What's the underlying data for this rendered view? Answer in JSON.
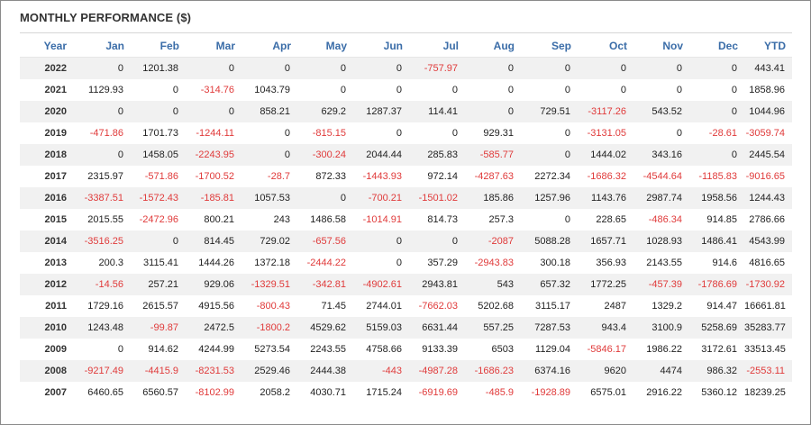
{
  "title": "MONTHLY PERFORMANCE ($)",
  "colors": {
    "header_text": "#3b6da8",
    "negative": "#e03a3a",
    "row_stripe": "#f1f1f1"
  },
  "columns": [
    "Year",
    "Jan",
    "Feb",
    "Mar",
    "Apr",
    "May",
    "Jun",
    "Jul",
    "Aug",
    "Sep",
    "Oct",
    "Nov",
    "Dec",
    "YTD"
  ],
  "rows": [
    [
      "2022",
      "0",
      "1201.38",
      "0",
      "0",
      "0",
      "0",
      "-757.97",
      "0",
      "0",
      "0",
      "0",
      "0",
      "443.41"
    ],
    [
      "2021",
      "1129.93",
      "0",
      "-314.76",
      "1043.79",
      "0",
      "0",
      "0",
      "0",
      "0",
      "0",
      "0",
      "0",
      "1858.96"
    ],
    [
      "2020",
      "0",
      "0",
      "0",
      "858.21",
      "629.2",
      "1287.37",
      "114.41",
      "0",
      "729.51",
      "-3117.26",
      "543.52",
      "0",
      "1044.96"
    ],
    [
      "2019",
      "-471.86",
      "1701.73",
      "-1244.11",
      "0",
      "-815.15",
      "0",
      "0",
      "929.31",
      "0",
      "-3131.05",
      "0",
      "-28.61",
      "-3059.74"
    ],
    [
      "2018",
      "0",
      "1458.05",
      "-2243.95",
      "0",
      "-300.24",
      "2044.44",
      "285.83",
      "-585.77",
      "0",
      "1444.02",
      "343.16",
      "0",
      "2445.54"
    ],
    [
      "2017",
      "2315.97",
      "-571.86",
      "-1700.52",
      "-28.7",
      "872.33",
      "-1443.93",
      "972.14",
      "-4287.63",
      "2272.34",
      "-1686.32",
      "-4544.64",
      "-1185.83",
      "-9016.65"
    ],
    [
      "2016",
      "-3387.51",
      "-1572.43",
      "-185.81",
      "1057.53",
      "0",
      "-700.21",
      "-1501.02",
      "185.86",
      "1257.96",
      "1143.76",
      "2987.74",
      "1958.56",
      "1244.43"
    ],
    [
      "2015",
      "2015.55",
      "-2472.96",
      "800.21",
      "243",
      "1486.58",
      "-1014.91",
      "814.73",
      "257.3",
      "0",
      "228.65",
      "-486.34",
      "914.85",
      "2786.66"
    ],
    [
      "2014",
      "-3516.25",
      "0",
      "814.45",
      "729.02",
      "-657.56",
      "0",
      "0",
      "-2087",
      "5088.28",
      "1657.71",
      "1028.93",
      "1486.41",
      "4543.99"
    ],
    [
      "2013",
      "200.3",
      "3115.41",
      "1444.26",
      "1372.18",
      "-2444.22",
      "0",
      "357.29",
      "-2943.83",
      "300.18",
      "356.93",
      "2143.55",
      "914.6",
      "4816.65"
    ],
    [
      "2012",
      "-14.56",
      "257.21",
      "929.06",
      "-1329.51",
      "-342.81",
      "-4902.61",
      "2943.81",
      "543",
      "657.32",
      "1772.25",
      "-457.39",
      "-1786.69",
      "-1730.92"
    ],
    [
      "2011",
      "1729.16",
      "2615.57",
      "4915.56",
      "-800.43",
      "71.45",
      "2744.01",
      "-7662.03",
      "5202.68",
      "3115.17",
      "2487",
      "1329.2",
      "914.47",
      "16661.81"
    ],
    [
      "2010",
      "1243.48",
      "-99.87",
      "2472.5",
      "-1800.2",
      "4529.62",
      "5159.03",
      "6631.44",
      "557.25",
      "7287.53",
      "943.4",
      "3100.9",
      "5258.69",
      "35283.77"
    ],
    [
      "2009",
      "0",
      "914.62",
      "4244.99",
      "5273.54",
      "2243.55",
      "4758.66",
      "9133.39",
      "6503",
      "1129.04",
      "-5846.17",
      "1986.22",
      "3172.61",
      "33513.45"
    ],
    [
      "2008",
      "-9217.49",
      "-4415.9",
      "-8231.53",
      "2529.46",
      "2444.38",
      "-443",
      "-4987.28",
      "-1686.23",
      "6374.16",
      "9620",
      "4474",
      "986.32",
      "-2553.11"
    ],
    [
      "2007",
      "6460.65",
      "6560.57",
      "-8102.99",
      "2058.2",
      "4030.71",
      "1715.24",
      "-6919.69",
      "-485.9",
      "-1928.89",
      "6575.01",
      "2916.22",
      "5360.12",
      "18239.25"
    ]
  ]
}
